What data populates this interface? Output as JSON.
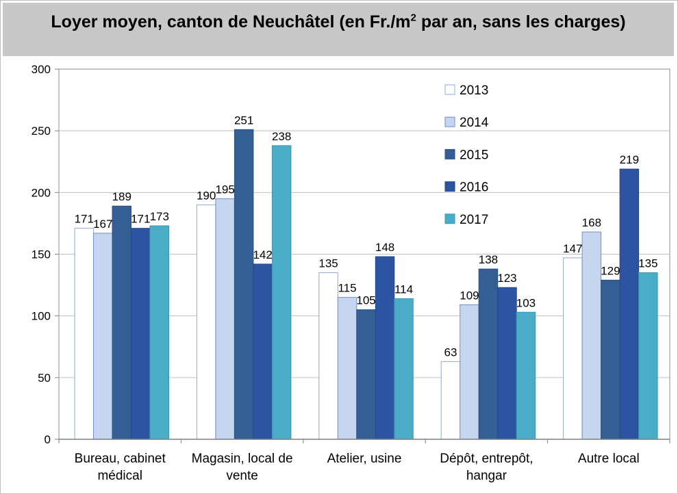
{
  "chart_data": {
    "type": "bar",
    "title": "Loyer moyen, canton de Neuchâtel (en Fr./m2 par an, sans les charges)",
    "title_parts": {
      "before": "Loyer moyen, canton de Neuchâtel (en Fr./m",
      "sup": "2",
      "after": " par an, sans les charges)"
    },
    "categories": [
      [
        "Bureau, cabinet",
        "médical"
      ],
      [
        "Magasin, local de",
        "vente"
      ],
      [
        "Atelier, usine"
      ],
      [
        "Dépôt, entrepôt,",
        "hangar"
      ],
      [
        "Autre local"
      ]
    ],
    "series": [
      {
        "name": "2013",
        "color": "#ffffff",
        "stroke": "#8ea9d8",
        "values": [
          171,
          190,
          135,
          63,
          147
        ]
      },
      {
        "name": "2014",
        "color": "#c5d6ee",
        "stroke": "#6f8fc8",
        "values": [
          167,
          195,
          115,
          109,
          168
        ]
      },
      {
        "name": "2015",
        "color": "#355f94",
        "stroke": "#2b4f7e",
        "values": [
          189,
          251,
          105,
          138,
          129
        ]
      },
      {
        "name": "2016",
        "color": "#2c54a0",
        "stroke": "#24468a",
        "values": [
          171,
          142,
          148,
          123,
          219
        ]
      },
      {
        "name": "2017",
        "color": "#4aacc6",
        "stroke": "#3d97ae",
        "values": [
          173,
          238,
          114,
          103,
          135
        ]
      }
    ],
    "ylim": [
      0,
      300
    ],
    "yticks": [
      0,
      50,
      100,
      150,
      200,
      250,
      300
    ],
    "grid": true,
    "legend": "top-right",
    "data_labels": true
  }
}
